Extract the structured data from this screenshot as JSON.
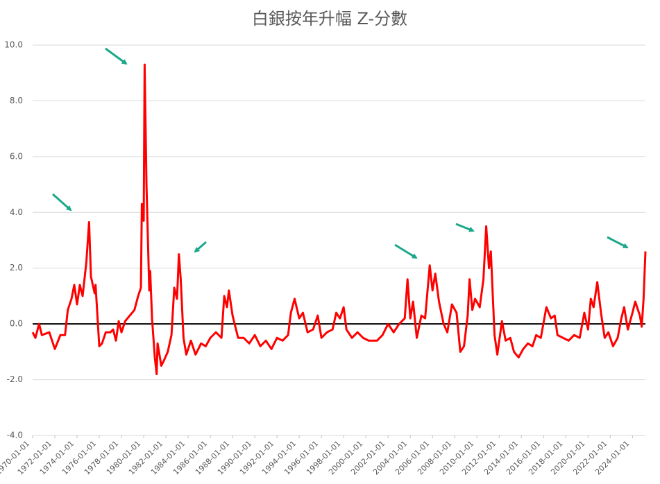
{
  "chart_data": {
    "type": "line",
    "title": "白銀按年升幅 Z-分數",
    "x": [
      "1970-01-01",
      "1970-04-01",
      "1970-08-01",
      "1970-11-01",
      "1971-07-01",
      "1972-01-01",
      "1972-07-01",
      "1972-12-01",
      "1973-03-01",
      "1973-07-01",
      "1973-10-01",
      "1974-01-01",
      "1974-04-01",
      "1974-07-01",
      "1974-11-01",
      "1975-02-01",
      "1975-04-01",
      "1975-08-01",
      "1975-09-01",
      "1976-01-01",
      "1976-04-01",
      "1976-08-01",
      "1977-01-01",
      "1977-04-01",
      "1977-07-01",
      "1977-10-01",
      "1978-01-01",
      "1978-05-01",
      "1978-10-01",
      "1979-03-01",
      "1979-07-01",
      "1979-10-01",
      "1979-11-01",
      "1980-01-01",
      "1980-02-01",
      "1980-04-01",
      "1980-07-01",
      "1980-08-01",
      "1980-10-01",
      "1981-01-01",
      "1981-03-01",
      "1981-04-01",
      "1981-08-01",
      "1981-11-01",
      "1982-03-01",
      "1982-07-01",
      "1982-10-01",
      "1983-01-01",
      "1983-03-01",
      "1983-05-01",
      "1983-08-01",
      "1983-11-01",
      "1984-04-01",
      "1984-09-01",
      "1985-03-01",
      "1985-08-01",
      "1986-01-01",
      "1986-07-01",
      "1987-01-01",
      "1987-04-01",
      "1987-07-01",
      "1987-09-01",
      "1988-01-01",
      "1988-07-01",
      "1989-01-01",
      "1989-07-01",
      "1990-01-01",
      "1990-07-01",
      "1991-01-01",
      "1991-07-01",
      "1992-01-01",
      "1992-07-01",
      "1993-01-01",
      "1993-04-01",
      "1993-08-01",
      "1994-01-01",
      "1994-05-01",
      "1994-10-01",
      "1995-04-01",
      "1995-09-01",
      "1996-01-01",
      "1996-07-01",
      "1997-01-01",
      "1997-05-01",
      "1997-09-01",
      "1998-01-01",
      "1998-04-01",
      "1998-10-01",
      "1999-04-01",
      "1999-10-01",
      "2000-04-01",
      "2001-01-01",
      "2001-07-01",
      "2002-01-01",
      "2002-07-01",
      "2003-01-01",
      "2003-07-01",
      "2003-10-01",
      "2004-01-01",
      "2004-04-01",
      "2004-08-01",
      "2005-01-01",
      "2005-05-01",
      "2005-10-01",
      "2006-01-01",
      "2006-04-01",
      "2006-08-01",
      "2007-01-01",
      "2007-05-01",
      "2007-10-01",
      "2008-03-01",
      "2008-07-01",
      "2008-11-01",
      "2009-03-01",
      "2009-05-01",
      "2009-08-01",
      "2009-11-01",
      "2010-04-01",
      "2010-08-01",
      "2010-11-01",
      "2011-02-01",
      "2011-04-01",
      "2011-08-01",
      "2011-11-01",
      "2012-04-01",
      "2012-08-01",
      "2013-01-01",
      "2013-05-01",
      "2013-10-01",
      "2014-03-01",
      "2014-08-01",
      "2015-01-01",
      "2015-05-01",
      "2015-10-01",
      "2016-04-01",
      "2016-09-01",
      "2017-01-01",
      "2017-04-01",
      "2017-10-01",
      "2018-04-01",
      "2018-10-01",
      "2019-04-01",
      "2019-09-01",
      "2020-01-01",
      "2020-04-01",
      "2020-07-01",
      "2020-11-01",
      "2021-03-01",
      "2021-07-01",
      "2021-11-01",
      "2022-04-01",
      "2022-09-01",
      "2023-01-01",
      "2023-04-01",
      "2023-08-01",
      "2024-01-01",
      "2024-04-01",
      "2024-09-01",
      "2024-11-01",
      "2025-01-01",
      "2025-03-01"
    ],
    "series": [
      {
        "name": "Z-score",
        "color": "#ff0000",
        "values": [
          -0.3,
          -0.5,
          0.0,
          -0.4,
          -0.3,
          -0.9,
          -0.4,
          -0.4,
          0.5,
          0.9,
          1.4,
          0.7,
          1.4,
          1.0,
          2.2,
          3.65,
          1.7,
          1.1,
          1.4,
          -0.8,
          -0.7,
          -0.3,
          -0.3,
          -0.2,
          -0.6,
          0.1,
          -0.3,
          0.1,
          0.3,
          0.5,
          1.0,
          1.3,
          4.3,
          3.7,
          9.3,
          5.0,
          1.2,
          1.9,
          0.2,
          -1.2,
          -1.8,
          -0.7,
          -1.5,
          -1.3,
          -1.0,
          -0.4,
          1.3,
          0.9,
          2.5,
          1.6,
          -0.5,
          -1.1,
          -0.6,
          -1.1,
          -0.7,
          -0.8,
          -0.5,
          -0.3,
          -0.5,
          1.0,
          0.6,
          1.2,
          0.3,
          -0.5,
          -0.5,
          -0.7,
          -0.4,
          -0.8,
          -0.6,
          -0.9,
          -0.5,
          -0.6,
          -0.4,
          0.4,
          0.9,
          0.2,
          0.4,
          -0.3,
          -0.2,
          0.3,
          -0.5,
          -0.3,
          -0.2,
          0.4,
          0.2,
          0.6,
          -0.2,
          -0.5,
          -0.3,
          -0.5,
          -0.6,
          -0.6,
          -0.4,
          0.0,
          -0.3,
          0.0,
          0.2,
          1.6,
          0.2,
          0.8,
          -0.5,
          0.3,
          0.2,
          2.1,
          1.2,
          1.8,
          0.8,
          0.0,
          -0.3,
          0.7,
          0.4,
          -1.0,
          -0.8,
          0.3,
          1.6,
          0.5,
          0.9,
          0.6,
          1.6,
          3.5,
          2.0,
          2.6,
          -0.4,
          -1.1,
          0.1,
          -0.6,
          -0.5,
          -1.0,
          -1.2,
          -0.9,
          -0.7,
          -0.8,
          -0.4,
          -0.5,
          0.6,
          0.2,
          0.3,
          -0.4,
          -0.5,
          -0.6,
          -0.4,
          -0.5,
          0.4,
          -0.2,
          0.9,
          0.6,
          1.5,
          0.4,
          -0.5,
          -0.3,
          -0.8,
          -0.5,
          0.2,
          0.6,
          -0.2,
          0.4,
          0.8,
          0.3,
          -0.1,
          0.9,
          2.6
        ]
      }
    ],
    "xlim": [
      "1970-01-01",
      "2025-03-01"
    ],
    "xticks": [
      "1970-01-01",
      "1972-01-01",
      "1974-01-01",
      "1976-01-01",
      "1978-01-01",
      "1980-01-01",
      "1982-01-01",
      "1984-01-01",
      "1986-01-01",
      "1988-01-01",
      "1990-01-01",
      "1992-01-01",
      "1994-01-01",
      "1996-01-01",
      "1998-01-01",
      "2000-01-01",
      "2002-01-01",
      "2004-01-01",
      "2006-01-01",
      "2008-01-01",
      "2010-01-01",
      "2012-01-01",
      "2014-01-01",
      "2016-01-01",
      "2018-01-01",
      "2020-01-01",
      "2022-01-01",
      "2024-01-01"
    ],
    "ylim": [
      -4,
      10
    ],
    "yticks": [
      {
        "value": -4,
        "label": "-4.0"
      },
      {
        "value": -2,
        "label": "-2.0"
      },
      {
        "value": 0,
        "label": "0.0"
      },
      {
        "value": 2,
        "label": "2.0"
      },
      {
        "value": 4,
        "label": "4.0"
      },
      {
        "value": 6,
        "label": "6.0"
      },
      {
        "value": 8,
        "label": "8.0"
      },
      {
        "value": 10,
        "label": "10.0"
      }
    ],
    "grid": true
  }
}
